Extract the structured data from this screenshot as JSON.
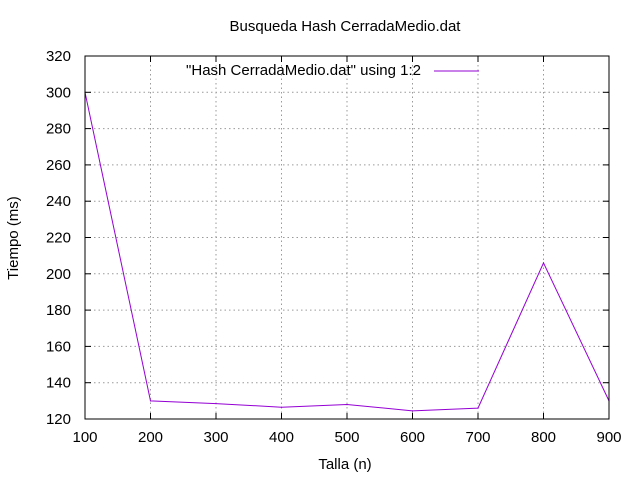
{
  "chart_data": {
    "type": "line",
    "title": "Busqueda Hash CerradaMedio.dat",
    "xlabel": "Talla (n)",
    "ylabel": "Tiempo (ms)",
    "xlim": [
      100,
      900
    ],
    "ylim": [
      120,
      320
    ],
    "x_ticks": [
      "100",
      "200",
      "300",
      "400",
      "500",
      "600",
      "700",
      "800",
      "900"
    ],
    "y_ticks": [
      "120",
      "140",
      "160",
      "180",
      "200",
      "220",
      "240",
      "260",
      "280",
      "300",
      "320"
    ],
    "grid": true,
    "legend_position": "top-center",
    "series": [
      {
        "name": "\"Hash CerradaMedio.dat\" using 1:2",
        "color": "#9400d3",
        "x": [
          100,
          200,
          300,
          400,
          500,
          600,
          700,
          800,
          900
        ],
        "y": [
          300,
          130,
          128.5,
          126.5,
          128,
          124.5,
          126,
          206,
          130
        ]
      }
    ]
  }
}
